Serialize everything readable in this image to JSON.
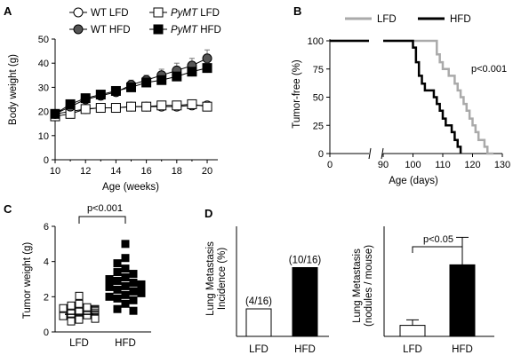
{
  "panels": {
    "A": "A",
    "B": "B",
    "C": "C",
    "D": "D"
  },
  "chart_data": [
    {
      "panel": "A",
      "type": "line",
      "xlabel": "Age (weeks)",
      "ylabel": "Body weight (g)",
      "xlim": [
        10,
        20.7
      ],
      "ylim": [
        0,
        50
      ],
      "xticks": [
        10,
        12,
        14,
        16,
        18,
        20
      ],
      "yticks": [
        0,
        10,
        20,
        30,
        40,
        50
      ],
      "legend": [
        {
          "prefix": "WT",
          "suffix": " LFD",
          "italic": false,
          "marker": "circle",
          "fill": "#ffffff"
        },
        {
          "prefix": "PyMT",
          "suffix": " LFD",
          "italic": true,
          "marker": "square",
          "fill": "#ffffff"
        },
        {
          "prefix": "WT",
          "suffix": " HFD",
          "italic": false,
          "marker": "circle",
          "fill": "#555555"
        },
        {
          "prefix": "PyMT",
          "suffix": " HFD",
          "italic": true,
          "marker": "square",
          "fill": "#000000"
        }
      ],
      "x": [
        10,
        11,
        12,
        13,
        14,
        15,
        16,
        17,
        18,
        19,
        20
      ],
      "series": [
        {
          "key": "wt_lfd",
          "marker": "circle",
          "fill": "#ffffff",
          "values": [
            19,
            20,
            21,
            21.5,
            21.5,
            22,
            22,
            22,
            22,
            22.5,
            22.5
          ],
          "errors": [
            0.5,
            0.5,
            0.5,
            0.5,
            0.5,
            0.5,
            0.5,
            0.5,
            0.5,
            0.5,
            0.5
          ]
        },
        {
          "key": "pymt_lfd",
          "marker": "square",
          "fill": "#ffffff",
          "values": [
            18,
            19,
            21,
            21.5,
            21.5,
            22,
            22,
            22.5,
            22.5,
            23,
            22
          ],
          "errors": [
            0.5,
            0.5,
            0.5,
            0.5,
            0.5,
            0.5,
            0.5,
            0.5,
            0.5,
            0.5,
            0.5
          ]
        },
        {
          "key": "wt_hfd",
          "marker": "circle",
          "fill": "#555555",
          "values": [
            19,
            22,
            25,
            26.5,
            28,
            31,
            33,
            35,
            37,
            39,
            42
          ],
          "errors": [
            1,
            1,
            1,
            1.5,
            1.5,
            2,
            2,
            2.5,
            3,
            3,
            3.5
          ]
        },
        {
          "key": "pymt_hfd",
          "marker": "square",
          "fill": "#000000",
          "values": [
            19,
            23,
            25.5,
            27,
            28.5,
            30,
            32,
            33,
            34.5,
            36.5,
            38
          ],
          "errors": [
            1,
            1,
            1,
            1,
            1,
            1,
            1.5,
            1.5,
            1.5,
            2,
            2
          ]
        }
      ]
    },
    {
      "panel": "B",
      "type": "line",
      "step": true,
      "xlabel": "Age (days)",
      "ylabel": "Tumor-free (%)",
      "broken_x_axis": true,
      "segment1_xlim": [
        0,
        20
      ],
      "segment2_xlim": [
        90,
        130
      ],
      "xticks": [
        0,
        90,
        100,
        110,
        120,
        130
      ],
      "ylim": [
        0,
        100
      ],
      "yticks": [
        0,
        25,
        50,
        75,
        100
      ],
      "annotation": "p<0.001",
      "series": [
        {
          "name": "LFD",
          "color": "#aaaaaa",
          "steps": [
            [
              90,
              100
            ],
            [
              108,
              100
            ],
            [
              108,
              88
            ],
            [
              109,
              88
            ],
            [
              109,
              81
            ],
            [
              110,
              81
            ],
            [
              110,
              75
            ],
            [
              112,
              75
            ],
            [
              112,
              69
            ],
            [
              114,
              69
            ],
            [
              114,
              62
            ],
            [
              115,
              62
            ],
            [
              115,
              56
            ],
            [
              116,
              56
            ],
            [
              116,
              50
            ],
            [
              117,
              50
            ],
            [
              117,
              44
            ],
            [
              118,
              44
            ],
            [
              118,
              38
            ],
            [
              119,
              38
            ],
            [
              119,
              31
            ],
            [
              120,
              31
            ],
            [
              120,
              25
            ],
            [
              121,
              25
            ],
            [
              121,
              19
            ],
            [
              122,
              19
            ],
            [
              122,
              12
            ],
            [
              124,
              12
            ],
            [
              124,
              6
            ],
            [
              125,
              6
            ],
            [
              125,
              0
            ],
            [
              127,
              0
            ]
          ]
        },
        {
          "name": "HFD",
          "color": "#000000",
          "steps": [
            [
              90,
              100
            ],
            [
              100,
              100
            ],
            [
              100,
              94
            ],
            [
              101,
              94
            ],
            [
              101,
              81
            ],
            [
              102,
              81
            ],
            [
              102,
              69
            ],
            [
              103,
              69
            ],
            [
              103,
              62
            ],
            [
              104,
              62
            ],
            [
              104,
              56
            ],
            [
              107,
              56
            ],
            [
              107,
              50
            ],
            [
              108,
              50
            ],
            [
              108,
              44
            ],
            [
              109,
              44
            ],
            [
              109,
              38
            ],
            [
              110,
              38
            ],
            [
              110,
              31
            ],
            [
              111,
              31
            ],
            [
              111,
              25
            ],
            [
              113,
              25
            ],
            [
              113,
              19
            ],
            [
              114,
              19
            ],
            [
              114,
              12
            ],
            [
              115,
              12
            ],
            [
              115,
              6
            ],
            [
              116,
              6
            ],
            [
              116,
              0
            ]
          ]
        }
      ]
    },
    {
      "panel": "C",
      "type": "scatter",
      "ylabel": "Tumor  weight (g)",
      "categories": [
        "LFD",
        "HFD"
      ],
      "ylim": [
        0,
        6
      ],
      "yticks": [
        0,
        2,
        4,
        6
      ],
      "annotation": "p<0.001",
      "points": [
        {
          "category": "LFD",
          "marker": "square",
          "fill": "#ffffff",
          "values": [
            2.05,
            1.6,
            1.5,
            1.4,
            1.35,
            1.3,
            1.25,
            1.2,
            1.15,
            1.1,
            1.05,
            1.0,
            1.0,
            0.95,
            0.95,
            0.9,
            0.85,
            0.85,
            0.8,
            0.75,
            0.7,
            0.6
          ]
        },
        {
          "category": "HFD",
          "marker": "square",
          "fill": "#000000",
          "values": [
            5.0,
            4.2,
            3.9,
            3.6,
            3.4,
            3.3,
            3.1,
            3.0,
            2.9,
            2.8,
            2.7,
            2.6,
            2.55,
            2.5,
            2.4,
            2.3,
            2.2,
            2.1,
            2.0,
            1.9,
            1.8,
            1.6,
            1.3,
            1.2
          ]
        }
      ],
      "medians": [
        {
          "category": "LFD",
          "value": 1.0
        },
        {
          "category": "HFD",
          "value": 2.5
        }
      ]
    },
    {
      "panel": "D-left",
      "type": "bar",
      "ylabel": "Lung Metastasis Incidence (%)",
      "categories": [
        "LFD",
        "HFD"
      ],
      "values": [
        25,
        62.5
      ],
      "fills": [
        "#ffffff",
        "#000000"
      ],
      "data_labels": [
        "(4/16)",
        "(10/16)"
      ],
      "ylim": [
        0,
        100
      ]
    },
    {
      "panel": "D-right",
      "type": "bar",
      "ylabel": "Lung Metastasis (nodules / mouse)",
      "categories": [
        "LFD",
        "HFD"
      ],
      "values": [
        0.3,
        1.95
      ],
      "errors": [
        0.15,
        0.75
      ],
      "fills": [
        "#ffffff",
        "#000000"
      ],
      "ylim": [
        0,
        3
      ],
      "annotation": "p<0.05"
    }
  ]
}
